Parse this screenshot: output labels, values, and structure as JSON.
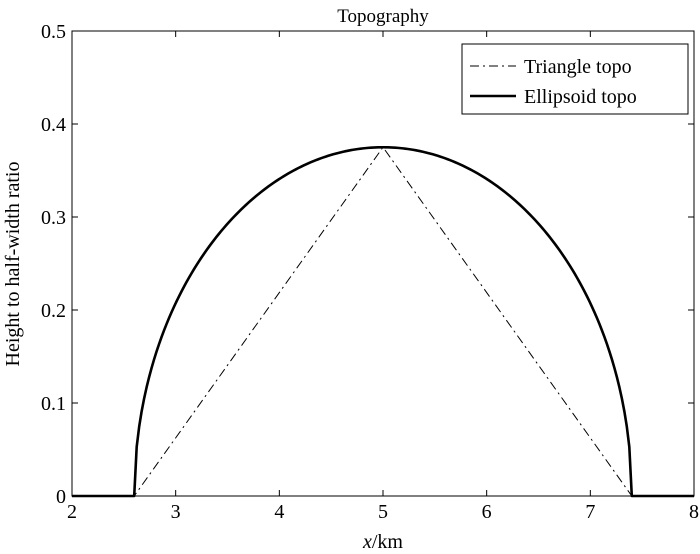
{
  "chart_data": {
    "type": "line",
    "title": "Topography",
    "xlabel_italic": "x",
    "xlabel_unit": "/km",
    "ylabel": "Height to half-width ratio",
    "xlim": [
      2,
      8
    ],
    "ylim": [
      0,
      0.5
    ],
    "xticks": [
      2,
      3,
      4,
      5,
      6,
      7,
      8
    ],
    "yticks": [
      0,
      0.1,
      0.2,
      0.3,
      0.4,
      0.5
    ],
    "xtick_labels": [
      "2",
      "3",
      "4",
      "5",
      "6",
      "7",
      "8"
    ],
    "ytick_labels": [
      "0",
      "0.1",
      "0.2",
      "0.3",
      "0.4",
      "0.5"
    ],
    "grid": false,
    "legend_position": "top-right",
    "series": [
      {
        "name": "Triangle topo",
        "style": "dash-dot",
        "color": "#000000",
        "points": [
          [
            2,
            0
          ],
          [
            2.6,
            0
          ],
          [
            5,
            0.375
          ],
          [
            7.4,
            0
          ],
          [
            8,
            0
          ]
        ]
      },
      {
        "name": "Ellipsoid topo",
        "style": "solid-thick",
        "color": "#000000",
        "ellipse": {
          "center": 5,
          "half_width": 2.4,
          "height": 0.375
        },
        "flat_extent": [
          2,
          8
        ]
      }
    ]
  }
}
